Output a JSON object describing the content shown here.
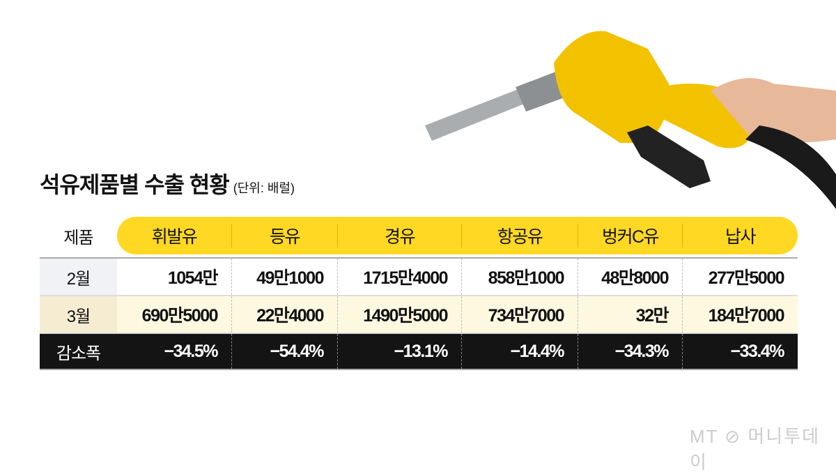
{
  "title": "석유제품별 수출 현황",
  "unit": "(단위: 배럴)",
  "logo": "MT 머니투데이",
  "colors": {
    "header": "#ffd823",
    "row_feb": "#ffffff",
    "row_mar": "#fff8e0",
    "row_change": "#141414"
  },
  "chart_data": {
    "type": "table",
    "corner": "제품",
    "columns": [
      "휘발유",
      "등유",
      "경유",
      "항공유",
      "벙커C유",
      "납사"
    ],
    "rows": [
      {
        "label": "2월",
        "values": [
          "1054만",
          "49만1000",
          "1715만4000",
          "858만1000",
          "48만8000",
          "277만5000"
        ]
      },
      {
        "label": "3월",
        "values": [
          "690만5000",
          "22만4000",
          "1490만5000",
          "734만7000",
          "32만",
          "184만7000"
        ]
      },
      {
        "label": "감소폭",
        "values": [
          "−34.5%",
          "−54.4%",
          "−13.1%",
          "−14.4%",
          "−34.3%",
          "−33.4%"
        ]
      }
    ]
  }
}
